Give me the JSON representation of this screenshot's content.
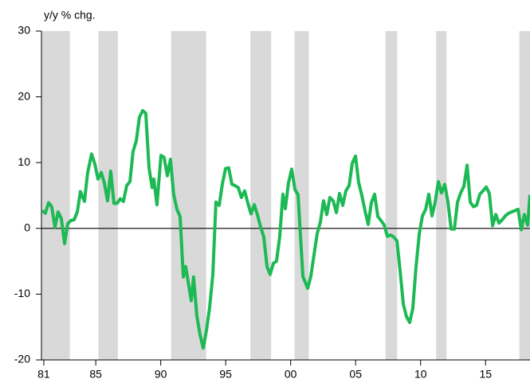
{
  "chart_data": {
    "type": "line",
    "y_label": "y/y % chg.",
    "color": "#1db954",
    "shade_color": "#d9d9d9",
    "shaded_ranges": [
      [
        1980.82,
        1983.0
      ],
      [
        1985.2,
        1986.7
      ],
      [
        1990.8,
        1993.5
      ],
      [
        1996.9,
        1998.5
      ],
      [
        2000.3,
        2001.4
      ],
      [
        2007.3,
        2008.2
      ],
      [
        2011.2,
        2012.0
      ],
      [
        2017.6,
        2018.42
      ]
    ],
    "x": [
      1980.88,
      1981.12,
      1981.37,
      1981.61,
      1981.86,
      1982.1,
      1982.35,
      1982.6,
      1982.84,
      1983.09,
      1983.33,
      1983.58,
      1983.82,
      1984.13,
      1984.37,
      1984.68,
      1984.93,
      1985.17,
      1985.42,
      1985.66,
      1985.91,
      1986.15,
      1986.4,
      1986.64,
      1986.89,
      1987.13,
      1987.38,
      1987.63,
      1987.87,
      1988.12,
      1988.36,
      1988.61,
      1988.85,
      1989.1,
      1989.34,
      1989.47,
      1989.71,
      1990.02,
      1990.26,
      1990.51,
      1990.75,
      1991.0,
      1991.25,
      1991.49,
      1991.74,
      1991.92,
      1992.17,
      1992.35,
      1992.53,
      1992.78,
      1993.02,
      1993.27,
      1993.52,
      1993.76,
      1994.01,
      1994.25,
      1994.5,
      1994.74,
      1994.99,
      1995.23,
      1995.48,
      1995.72,
      1995.97,
      1996.21,
      1996.46,
      1996.71,
      1996.95,
      1997.2,
      1997.44,
      1997.69,
      1997.93,
      1998.18,
      1998.42,
      1998.67,
      1998.91,
      1999.16,
      1999.4,
      1999.59,
      1999.83,
      2000.08,
      2000.33,
      2000.57,
      2000.94,
      2001.31,
      2001.55,
      2001.8,
      2002.04,
      2002.29,
      2002.53,
      2002.78,
      2003.02,
      2003.27,
      2003.52,
      2003.76,
      2004.01,
      2004.25,
      2004.5,
      2004.74,
      2004.99,
      2005.23,
      2005.48,
      2005.72,
      2005.97,
      2006.21,
      2006.46,
      2006.71,
      2006.95,
      2007.2,
      2007.44,
      2007.69,
      2007.93,
      2008.18,
      2008.42,
      2008.67,
      2008.91,
      2009.16,
      2009.4,
      2009.65,
      2009.9,
      2010.14,
      2010.39,
      2010.63,
      2010.88,
      2011.12,
      2011.37,
      2011.61,
      2011.86,
      2012.1,
      2012.35,
      2012.6,
      2012.84,
      2013.09,
      2013.33,
      2013.58,
      2013.82,
      2014.07,
      2014.31,
      2014.56,
      2014.8,
      2015.05,
      2015.29,
      2015.54,
      2015.79,
      2016.03,
      2016.28,
      2016.52,
      2016.77,
      2017.01,
      2017.26,
      2017.5,
      2017.75,
      2017.99,
      2018.24,
      2018.42
    ],
    "values": [
      2.7,
      2.3,
      3.9,
      3.3,
      0.2,
      2.5,
      1.5,
      -2.3,
      0.7,
      1.2,
      1.3,
      2.5,
      5.6,
      4.1,
      8.4,
      11.3,
      9.8,
      7.5,
      8.5,
      6.9,
      4.2,
      8.7,
      3.8,
      3.8,
      4.5,
      4.1,
      6.5,
      7.1,
      11.7,
      13.3,
      16.9,
      17.9,
      17.5,
      9.2,
      6.2,
      7.5,
      3.6,
      11.1,
      10.8,
      8.0,
      10.5,
      5.1,
      2.9,
      1.8,
      -7.4,
      -5.8,
      -8.8,
      -11.0,
      -7.4,
      -13.3,
      -16.1,
      -18.2,
      -15.5,
      -12.1,
      -7.0,
      4.0,
      3.5,
      6.7,
      9.1,
      9.2,
      6.7,
      6.5,
      6.2,
      4.7,
      5.7,
      3.8,
      2.2,
      3.6,
      2.1,
      0.2,
      -1.3,
      -5.8,
      -7.0,
      -5.3,
      -5.0,
      -1.2,
      5.2,
      3.0,
      6.9,
      9.0,
      5.9,
      5.1,
      -7.3,
      -9.1,
      -7.3,
      -4.0,
      -0.8,
      1.0,
      4.2,
      2.1,
      4.7,
      4.2,
      2.4,
      5.3,
      3.5,
      5.7,
      6.5,
      9.9,
      11.0,
      7.0,
      5.0,
      2.7,
      0.6,
      3.9,
      5.2,
      1.8,
      1.2,
      0.5,
      -1.2,
      -1.0,
      -1.3,
      -1.9,
      -6.4,
      -11.5,
      -13.4,
      -14.3,
      -12.2,
      -5.8,
      -0.8,
      1.9,
      2.9,
      5.2,
      1.9,
      4.0,
      7.1,
      5.4,
      6.7,
      4.1,
      -0.1,
      -0.1,
      4.0,
      5.4,
      6.4,
      9.6,
      4.0,
      3.3,
      3.5,
      5.2,
      5.7,
      6.3,
      5.3,
      0.4,
      2.1,
      0.8,
      1.3,
      1.9,
      2.3,
      2.5,
      2.7,
      2.9,
      -0.2,
      2.1,
      0.5,
      5.1
    ],
    "xlim": [
      1980.82,
      2018.42
    ],
    "xticks": [
      {
        "value": 1981,
        "label": "81"
      },
      {
        "value": 1985,
        "label": "85"
      },
      {
        "value": 1990,
        "label": "90"
      },
      {
        "value": 1995,
        "label": "95"
      },
      {
        "value": 2000,
        "label": "00"
      },
      {
        "value": 2005,
        "label": "05"
      },
      {
        "value": 2010,
        "label": "10"
      },
      {
        "value": 2015,
        "label": "15"
      }
    ],
    "ylim": [
      -20,
      30
    ],
    "yticks": [
      -20,
      -10,
      0,
      10,
      20,
      30
    ]
  }
}
